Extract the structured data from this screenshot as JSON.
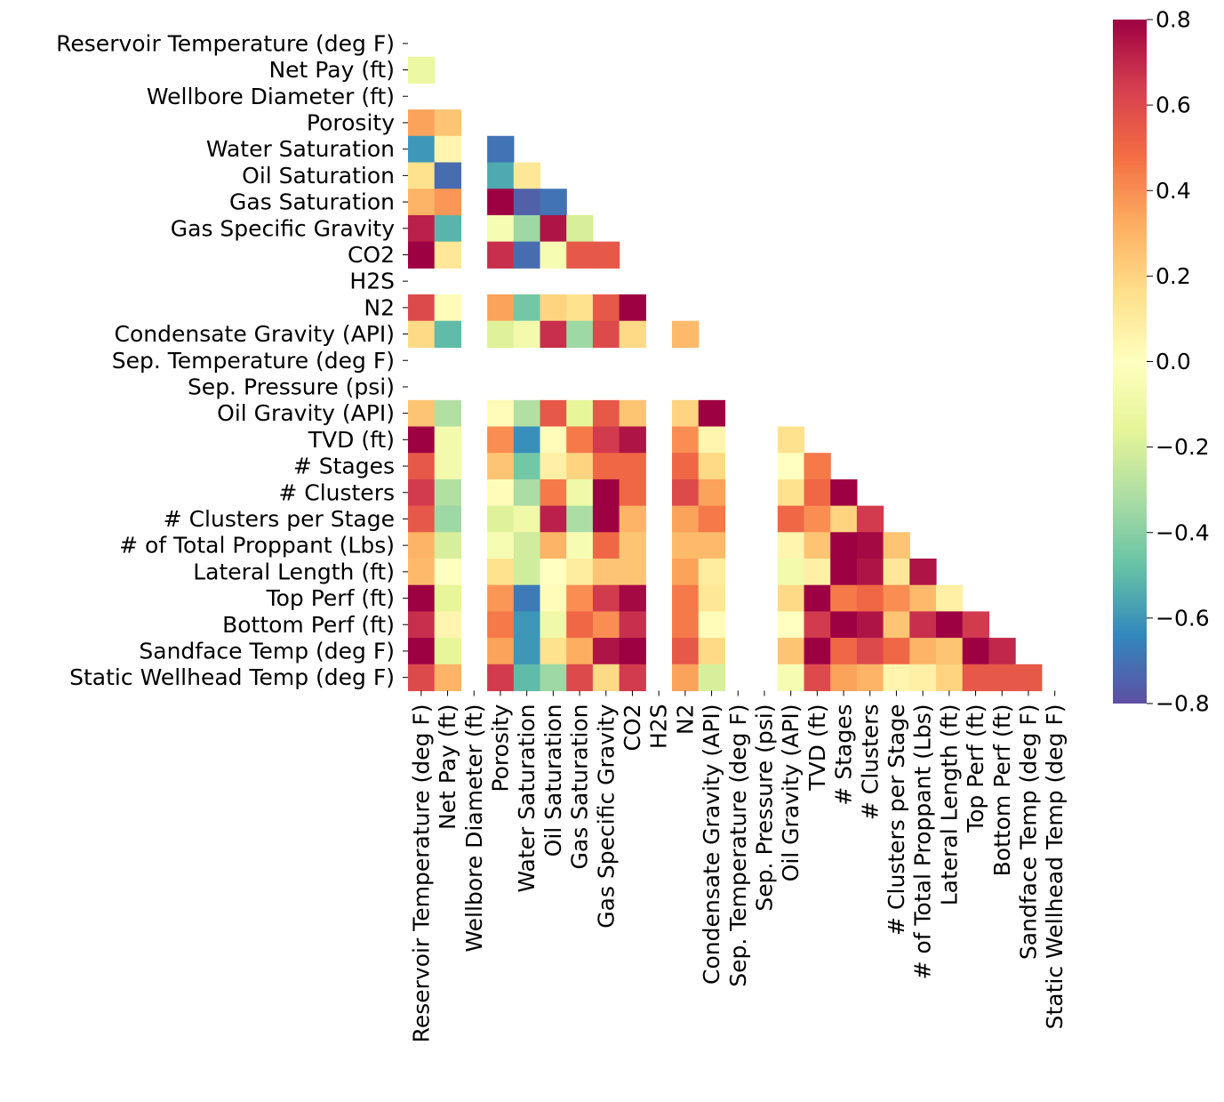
{
  "chart_data": {
    "type": "heatmap",
    "title": "",
    "xlabel": "",
    "ylabel": "",
    "mask": "upper-triangle-including-diagonal",
    "colormap": "Spectral_r",
    "vmin": -0.8,
    "vmax": 0.8,
    "colorbar_ticks": [
      "0.8",
      "0.6",
      "0.4",
      "0.2",
      "0.0",
      "−0.2",
      "−0.4",
      "−0.6",
      "−0.8"
    ],
    "colorbar_tick_values": [
      0.8,
      0.6,
      0.4,
      0.2,
      0.0,
      -0.2,
      -0.4,
      -0.6,
      -0.8
    ],
    "variables": [
      "Reservoir Temperature (deg F)",
      "Net Pay (ft)",
      "Wellbore Diameter (ft)",
      "Porosity",
      "Water Saturation",
      "Oil Saturation",
      "Gas Saturation",
      "Gas Specific Gravity",
      "CO2",
      "H2S",
      "N2",
      "Condensate Gravity (API)",
      "Sep. Temperature (deg F)",
      "Sep. Pressure (psi)",
      "Oil Gravity (API)",
      "TVD (ft)",
      "# Stages",
      "# Clusters",
      "# Clusters per Stage",
      "# of Total Proppant (Lbs)",
      "Lateral Length (ft)",
      "Top Perf (ft)",
      "Bottom Perf (ft)",
      "Sandface Temp (deg F)",
      "Static Wellhead Temp (deg F)"
    ],
    "values": [
      [],
      [
        -0.12
      ],
      [
        null,
        null
      ],
      [
        0.35,
        0.25,
        null
      ],
      [
        -0.6,
        0.05,
        null,
        -0.7
      ],
      [
        0.15,
        -0.72,
        null,
        -0.55,
        0.12
      ],
      [
        0.3,
        0.38,
        null,
        0.85,
        -0.75,
        -0.7
      ],
      [
        0.72,
        -0.52,
        null,
        -0.05,
        -0.35,
        0.75,
        -0.2
      ],
      [
        0.8,
        0.12,
        null,
        0.68,
        -0.72,
        -0.05,
        0.55,
        0.55
      ],
      [
        null,
        null,
        null,
        null,
        null,
        null,
        null,
        null,
        null
      ],
      [
        0.6,
        0.02,
        null,
        0.35,
        -0.45,
        0.2,
        0.15,
        0.55,
        0.8,
        null
      ],
      [
        0.18,
        -0.5,
        null,
        -0.18,
        -0.08,
        0.68,
        -0.35,
        0.6,
        0.18,
        null,
        0.28
      ],
      [
        null,
        null,
        null,
        null,
        null,
        null,
        null,
        null,
        null,
        null,
        null,
        null
      ],
      [
        null,
        null,
        null,
        null,
        null,
        null,
        null,
        null,
        null,
        null,
        null,
        null,
        null
      ],
      [
        0.25,
        -0.3,
        null,
        0.02,
        -0.3,
        0.55,
        -0.15,
        0.55,
        0.25,
        null,
        0.2,
        0.82,
        null,
        null
      ],
      [
        0.85,
        -0.08,
        null,
        0.4,
        -0.62,
        0.02,
        0.45,
        0.65,
        0.75,
        null,
        0.4,
        0.05,
        null,
        null,
        0.15
      ],
      [
        0.55,
        -0.08,
        null,
        0.25,
        -0.45,
        0.08,
        0.2,
        0.5,
        0.5,
        null,
        0.5,
        0.18,
        null,
        null,
        0.0,
        0.45
      ],
      [
        0.65,
        -0.3,
        null,
        0.02,
        -0.32,
        0.45,
        -0.1,
        0.8,
        0.5,
        null,
        0.6,
        0.35,
        null,
        null,
        0.15,
        0.5,
        0.85
      ],
      [
        0.55,
        -0.35,
        null,
        -0.18,
        -0.1,
        0.72,
        -0.32,
        0.85,
        0.3,
        null,
        0.35,
        0.45,
        null,
        null,
        0.5,
        0.4,
        0.2,
        0.65
      ],
      [
        0.3,
        -0.2,
        null,
        -0.05,
        -0.22,
        0.3,
        -0.05,
        0.5,
        0.25,
        null,
        0.28,
        0.28,
        null,
        null,
        0.05,
        0.25,
        0.85,
        0.78,
        0.25
      ],
      [
        0.28,
        0.0,
        null,
        0.15,
        -0.22,
        0.0,
        0.1,
        0.25,
        0.25,
        null,
        0.35,
        0.1,
        null,
        null,
        -0.08,
        0.08,
        0.85,
        0.75,
        0.12,
        0.75
      ],
      [
        0.85,
        -0.15,
        null,
        0.38,
        -0.68,
        0.02,
        0.4,
        0.65,
        0.78,
        null,
        0.45,
        0.12,
        null,
        null,
        0.18,
        0.85,
        0.45,
        0.5,
        0.4,
        0.28,
        0.08
      ],
      [
        0.68,
        0.05,
        null,
        0.45,
        -0.6,
        -0.1,
        0.5,
        0.4,
        0.68,
        null,
        0.45,
        0.02,
        null,
        null,
        0.0,
        0.65,
        0.85,
        0.75,
        0.25,
        0.68,
        0.85,
        0.65
      ],
      [
        0.85,
        -0.15,
        null,
        0.35,
        -0.6,
        0.15,
        0.32,
        0.75,
        0.8,
        null,
        0.55,
        0.18,
        null,
        null,
        0.25,
        0.85,
        0.5,
        0.6,
        0.5,
        0.3,
        0.25,
        0.85,
        0.7
      ],
      [
        0.6,
        0.3,
        null,
        0.65,
        -0.5,
        -0.35,
        0.6,
        0.18,
        0.65,
        null,
        0.35,
        -0.2,
        null,
        null,
        -0.05,
        0.6,
        0.35,
        0.3,
        0.05,
        0.08,
        0.2,
        0.55,
        0.55,
        0.55
      ]
    ]
  }
}
